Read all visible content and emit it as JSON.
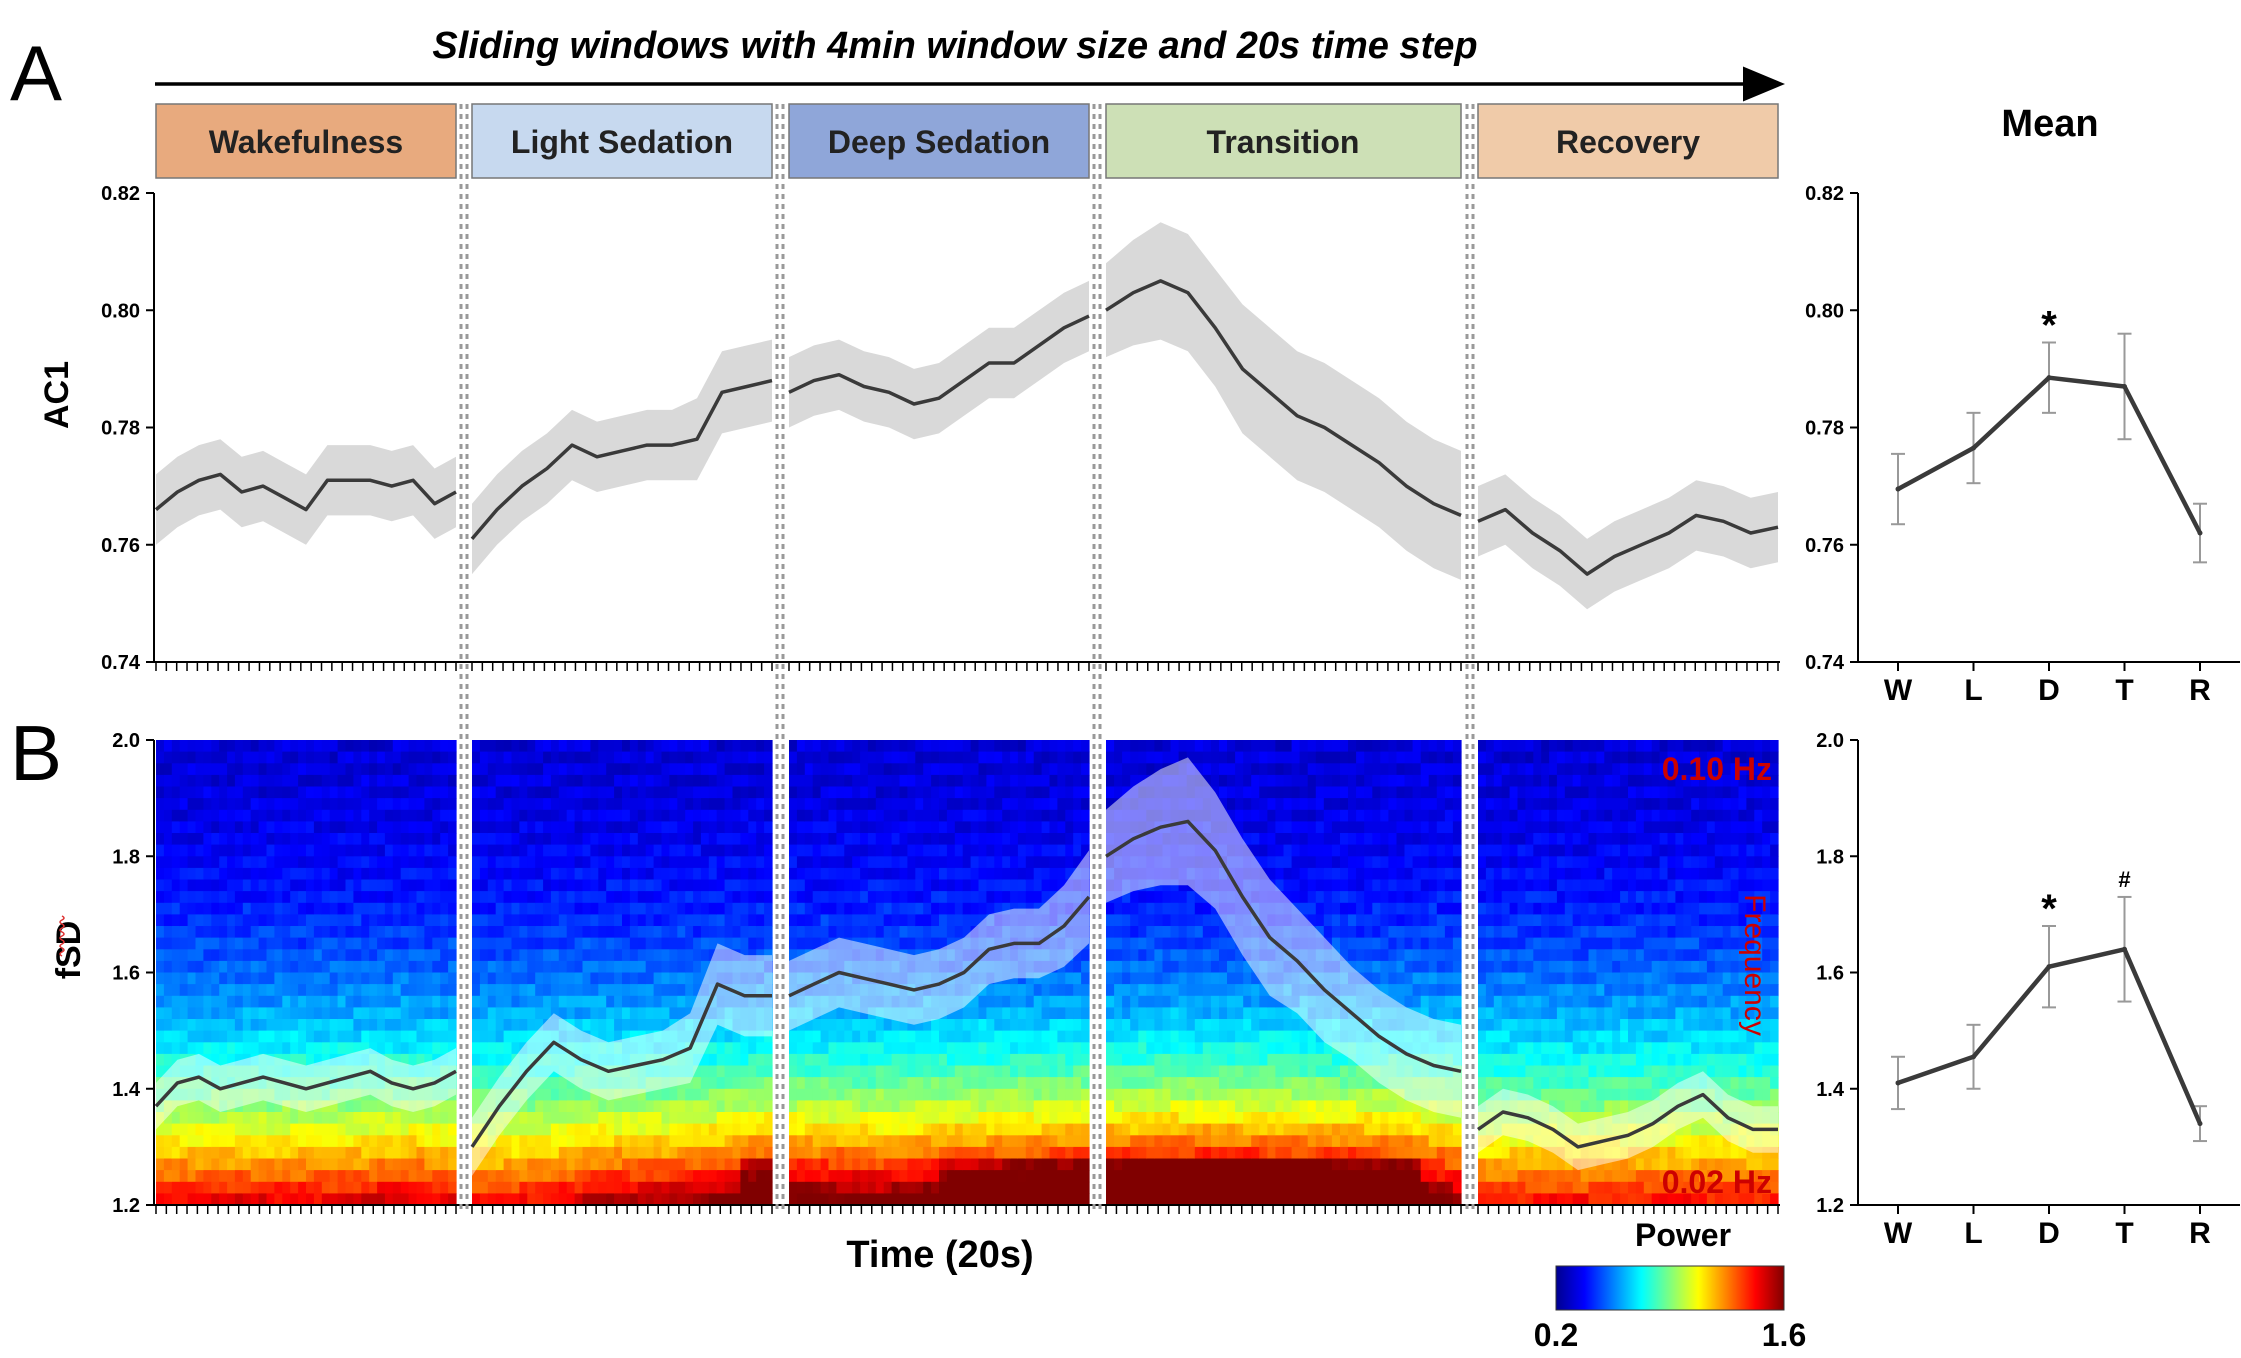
{
  "figure": {
    "banner": "Sliding windows with 4min window size and 20s time step",
    "panel_a_letter": "A",
    "panel_b_letter": "B",
    "phases": [
      {
        "label": "Wakefulness",
        "color": "#e8aa7e"
      },
      {
        "label": "Light Sedation",
        "color": "#c7d9ef"
      },
      {
        "label": "Deep Sedation",
        "color": "#8fa6d9"
      },
      {
        "label": "Transition",
        "color": "#cde0b6"
      },
      {
        "label": "Recovery",
        "color": "#f0cba9"
      }
    ],
    "xlabel": "Time (20s)",
    "mean_title": "Mean",
    "freq_top": "0.10 Hz",
    "freq_bottom": "0.02 Hz",
    "freq_label": "Frequency",
    "colorbar_title": "Power",
    "colorbar_min": "0.2",
    "colorbar_max": "1.6",
    "colors": {
      "line": "#3a3a3a",
      "band": "#d9d9d9",
      "freq_text": "#cc0000",
      "divider": "#999999"
    }
  },
  "chart_data": [
    {
      "id": "ac1_timecourse",
      "type": "area",
      "title": "",
      "xlabel": "",
      "ylabel": "AC1",
      "ylim": [
        0.74,
        0.82
      ],
      "yticks": [
        "0.74",
        "0.76",
        "0.78",
        "0.80",
        "0.82"
      ],
      "segments": [
        {
          "phase": "Wakefulness",
          "mean": [
            0.766,
            0.769,
            0.771,
            0.772,
            0.769,
            0.77,
            0.768,
            0.766,
            0.771,
            0.771,
            0.771,
            0.77,
            0.771,
            0.767,
            0.769
          ],
          "band": [
            0.006,
            0.006,
            0.006,
            0.006,
            0.006,
            0.006,
            0.006,
            0.006,
            0.006,
            0.006,
            0.006,
            0.006,
            0.006,
            0.006,
            0.006
          ]
        },
        {
          "phase": "Light Sedation",
          "mean": [
            0.761,
            0.766,
            0.77,
            0.773,
            0.777,
            0.775,
            0.776,
            0.777,
            0.777,
            0.778,
            0.786,
            0.787,
            0.788
          ],
          "band": [
            0.006,
            0.006,
            0.006,
            0.006,
            0.006,
            0.006,
            0.006,
            0.006,
            0.006,
            0.007,
            0.007,
            0.007,
            0.007
          ]
        },
        {
          "phase": "Deep Sedation",
          "mean": [
            0.786,
            0.788,
            0.789,
            0.787,
            0.786,
            0.784,
            0.785,
            0.788,
            0.791,
            0.791,
            0.794,
            0.797,
            0.799
          ],
          "band": [
            0.006,
            0.006,
            0.006,
            0.006,
            0.006,
            0.006,
            0.006,
            0.006,
            0.006,
            0.006,
            0.006,
            0.006,
            0.006
          ]
        },
        {
          "phase": "Transition",
          "mean": [
            0.8,
            0.803,
            0.805,
            0.803,
            0.797,
            0.79,
            0.786,
            0.782,
            0.78,
            0.777,
            0.774,
            0.77,
            0.767,
            0.765
          ],
          "band": [
            0.008,
            0.009,
            0.01,
            0.01,
            0.01,
            0.011,
            0.011,
            0.011,
            0.011,
            0.011,
            0.011,
            0.011,
            0.011,
            0.011
          ]
        },
        {
          "phase": "Recovery",
          "mean": [
            0.764,
            0.766,
            0.762,
            0.759,
            0.755,
            0.758,
            0.76,
            0.762,
            0.765,
            0.764,
            0.762,
            0.763
          ],
          "band": [
            0.006,
            0.006,
            0.006,
            0.006,
            0.006,
            0.006,
            0.006,
            0.006,
            0.006,
            0.006,
            0.006,
            0.006
          ]
        }
      ]
    },
    {
      "id": "fsd_timecourse",
      "type": "heatmap",
      "title": "",
      "xlabel": "Time (20s)",
      "ylabel": "fSD",
      "ylim": [
        1.2,
        2.0
      ],
      "yticks": [
        "1.2",
        "1.4",
        "1.6",
        "1.8",
        "2.0"
      ],
      "colorbar_range": [
        0.2,
        1.6
      ],
      "segments": [
        {
          "phase": "Wakefulness",
          "mean": [
            1.37,
            1.41,
            1.42,
            1.4,
            1.41,
            1.42,
            1.41,
            1.4,
            1.41,
            1.42,
            1.43,
            1.41,
            1.4,
            1.41,
            1.43
          ],
          "band": [
            0.04,
            0.04,
            0.04,
            0.04,
            0.04,
            0.04,
            0.04,
            0.04,
            0.04,
            0.04,
            0.04,
            0.04,
            0.04,
            0.04,
            0.04
          ],
          "heat_boost": [
            0.1,
            0.1,
            0.1,
            0.1,
            0.1,
            0.1,
            0.1,
            0.1,
            0.1,
            0.1,
            0.15,
            0.2,
            0.2,
            0.15,
            0.1
          ]
        },
        {
          "phase": "Light Sedation",
          "mean": [
            1.3,
            1.37,
            1.43,
            1.48,
            1.45,
            1.43,
            1.44,
            1.45,
            1.47,
            1.58,
            1.56,
            1.56
          ],
          "band": [
            0.05,
            0.05,
            0.05,
            0.05,
            0.05,
            0.05,
            0.05,
            0.05,
            0.06,
            0.07,
            0.07,
            0.07
          ],
          "heat_boost": [
            0.0,
            0.0,
            0.05,
            0.1,
            0.2,
            0.25,
            0.3,
            0.3,
            0.35,
            0.4,
            0.6,
            0.7
          ]
        },
        {
          "phase": "Deep Sedation",
          "mean": [
            1.56,
            1.58,
            1.6,
            1.59,
            1.58,
            1.57,
            1.58,
            1.6,
            1.64,
            1.65,
            1.65,
            1.68,
            1.73
          ],
          "band": [
            0.06,
            0.06,
            0.06,
            0.06,
            0.06,
            0.06,
            0.06,
            0.06,
            0.06,
            0.06,
            0.06,
            0.07,
            0.08
          ],
          "heat_boost": [
            0.55,
            0.55,
            0.55,
            0.5,
            0.5,
            0.55,
            0.6,
            0.65,
            0.7,
            0.7,
            0.75,
            0.8,
            0.85
          ]
        },
        {
          "phase": "Transition",
          "mean": [
            1.8,
            1.83,
            1.85,
            1.86,
            1.81,
            1.73,
            1.66,
            1.62,
            1.57,
            1.53,
            1.49,
            1.46,
            1.44,
            1.43
          ],
          "band": [
            0.08,
            0.09,
            0.1,
            0.11,
            0.1,
            0.1,
            0.1,
            0.09,
            0.09,
            0.08,
            0.08,
            0.08,
            0.08,
            0.08
          ],
          "heat_boost": [
            0.85,
            0.9,
            0.95,
            0.95,
            0.95,
            0.95,
            0.9,
            0.9,
            0.9,
            0.85,
            0.8,
            0.75,
            0.55,
            0.4
          ]
        },
        {
          "phase": "Recovery",
          "mean": [
            1.33,
            1.36,
            1.35,
            1.33,
            1.3,
            1.31,
            1.32,
            1.34,
            1.37,
            1.39,
            1.35,
            1.33,
            1.33
          ],
          "band": [
            0.04,
            0.04,
            0.04,
            0.04,
            0.04,
            0.04,
            0.04,
            0.04,
            0.04,
            0.04,
            0.04,
            0.04,
            0.04
          ],
          "heat_boost": [
            0.0,
            0.0,
            0.0,
            0.0,
            0.0,
            0.0,
            0.0,
            0.0,
            0.0,
            0.0,
            0.0,
            0.0,
            0.0
          ]
        }
      ]
    },
    {
      "id": "ac1_mean",
      "type": "line",
      "title": "Mean",
      "xlabel": "",
      "ylabel": "",
      "categories": [
        "W",
        "L",
        "D",
        "T",
        "R"
      ],
      "values": [
        0.7695,
        0.7765,
        0.7885,
        0.787,
        0.762
      ],
      "errors": [
        0.006,
        0.006,
        0.006,
        0.009,
        0.005
      ],
      "annotations": [
        "",
        "",
        "*",
        "",
        ""
      ],
      "ylim": [
        0.74,
        0.82
      ],
      "yticks": [
        "0.74",
        "0.76",
        "0.78",
        "0.80",
        "0.82"
      ]
    },
    {
      "id": "fsd_mean",
      "type": "line",
      "title": "",
      "xlabel": "",
      "ylabel": "",
      "categories": [
        "W",
        "L",
        "D",
        "T",
        "R"
      ],
      "values": [
        1.41,
        1.455,
        1.61,
        1.64,
        1.34
      ],
      "errors": [
        0.045,
        0.055,
        0.07,
        0.09,
        0.03
      ],
      "annotations": [
        "",
        "",
        "*",
        "#",
        ""
      ],
      "ylim": [
        1.2,
        2.0
      ],
      "yticks": [
        "1.2",
        "1.4",
        "1.6",
        "1.8",
        "2.0"
      ]
    }
  ]
}
